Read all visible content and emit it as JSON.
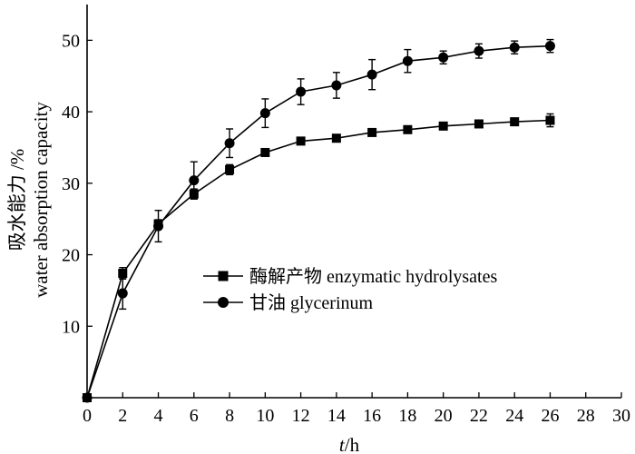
{
  "chart_data": {
    "type": "line",
    "xlabel_var": "t",
    "xlabel_unit": "/h",
    "ylabel_line1": "吸水能力 /%",
    "ylabel_line2": "water absorption capacity",
    "xlim": [
      0,
      30
    ],
    "ylim": [
      0,
      55
    ],
    "xticks": [
      0,
      2,
      4,
      6,
      8,
      10,
      12,
      14,
      16,
      18,
      20,
      22,
      24,
      26,
      28,
      30
    ],
    "yticks": [
      10,
      20,
      30,
      40,
      50
    ],
    "grid": false,
    "legend_position": "center-right",
    "x": [
      0,
      2,
      4,
      6,
      8,
      10,
      12,
      14,
      16,
      18,
      20,
      22,
      24,
      26
    ],
    "series": [
      {
        "name": "酶解产物 enzymatic hydrolysates",
        "marker": "square",
        "values": [
          0,
          17.4,
          24.3,
          28.5,
          31.9,
          34.3,
          35.9,
          36.3,
          37.1,
          37.5,
          38.0,
          38.3,
          38.6,
          38.8
        ],
        "errors": [
          0,
          0.8,
          0.6,
          0.7,
          0.7,
          0.4,
          0.4,
          0.3,
          0.3,
          0.3,
          0.3,
          0.3,
          0.3,
          0.9
        ]
      },
      {
        "name": "甘油  glycerinum",
        "marker": "circle",
        "values": [
          0,
          14.6,
          24.0,
          30.4,
          35.6,
          39.8,
          42.8,
          43.7,
          45.2,
          47.1,
          47.6,
          48.5,
          49.0,
          49.2
        ],
        "errors": [
          0,
          2.2,
          2.2,
          2.6,
          2.0,
          2.0,
          1.8,
          1.8,
          2.1,
          1.6,
          0.9,
          1.0,
          0.9,
          0.9
        ]
      }
    ]
  }
}
